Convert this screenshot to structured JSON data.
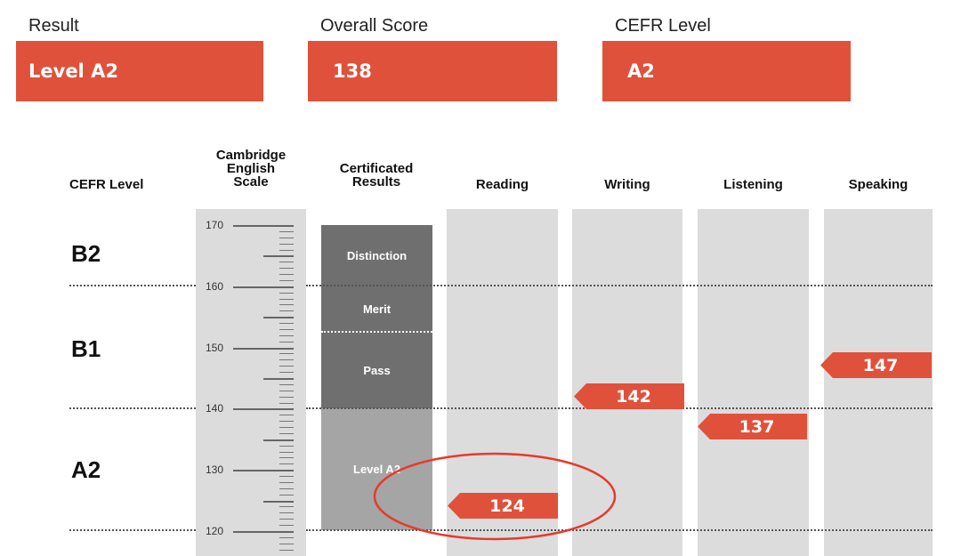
{
  "summary": {
    "result": {
      "label": "Result",
      "value": "Level A2"
    },
    "overall": {
      "label": "Overall Score",
      "value": "138"
    },
    "cefr": {
      "label": "CEFR Level",
      "value": "A2"
    }
  },
  "table": {
    "headers": {
      "cefr_level": "CEFR Level",
      "scale_line1": "Cambridge",
      "scale_line2": "English",
      "scale_line3": "Scale",
      "cert_line1": "Certificated",
      "cert_line2": "Results",
      "reading": "Reading",
      "writing": "Writing",
      "listening": "Listening",
      "speaking": "Speaking"
    },
    "levels": {
      "b2": "B2",
      "b1": "B1",
      "a2": "A2"
    },
    "scale_ticks": [
      "170",
      "160",
      "150",
      "140",
      "130",
      "120"
    ],
    "cert_bands": {
      "distinction": "Distinction",
      "merit": "Merit",
      "pass": "Pass",
      "level_a2": "Level A2"
    },
    "scores": {
      "reading": "124",
      "writing": "142",
      "listening": "137",
      "speaking": "147"
    }
  },
  "colors": {
    "accent": "#e0513b",
    "column_bg": "#dcdcdc",
    "cert_dark": "#6f6f6f",
    "cert_light": "#a5a5a5",
    "annotation": "#e8392c"
  }
}
